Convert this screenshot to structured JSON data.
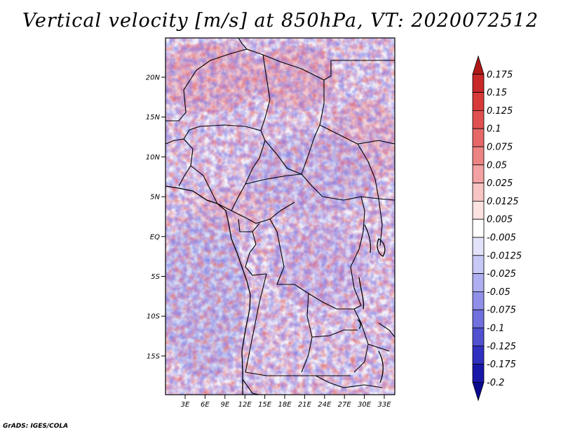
{
  "title": "Vertical velocity [m/s] at 850hPa, VT: 2020072512",
  "credit": "GrADS: IGES/COLA",
  "map": {
    "variable": "vertical velocity",
    "units": "m/s",
    "level": "850hPa",
    "valid_time": "2020072512",
    "region_lon": [
      0,
      35
    ],
    "region_lat": [
      -20,
      25
    ],
    "lat_labels": [
      "20N",
      "15N",
      "10N",
      "5N",
      "EQ",
      "5S",
      "10S",
      "15S"
    ],
    "lon_labels": [
      "3E",
      "6E",
      "9E",
      "12E",
      "15E",
      "18E",
      "21E",
      "24E",
      "27E",
      "30E",
      "33E"
    ]
  },
  "colorbar": {
    "labels": [
      "0.175",
      "0.15",
      "0.125",
      "0.1",
      "0.075",
      "0.05",
      "0.025",
      "0.0125",
      "0.005",
      "-0.005",
      "-0.0125",
      "-0.025",
      "-0.05",
      "-0.075",
      "-0.1",
      "-0.125",
      "-0.175",
      "-0.2"
    ],
    "colors": [
      "#b01818",
      "#c82828",
      "#d83a3a",
      "#e05050",
      "#e66868",
      "#ec8484",
      "#f2a2a2",
      "#f8c4c4",
      "#fde2e2",
      "#ffffff",
      "#e2e2fa",
      "#c8c8f6",
      "#aeaef0",
      "#9090e8",
      "#7070de",
      "#5050d0",
      "#3030c0",
      "#1818a8",
      "#0a0a90"
    ]
  }
}
